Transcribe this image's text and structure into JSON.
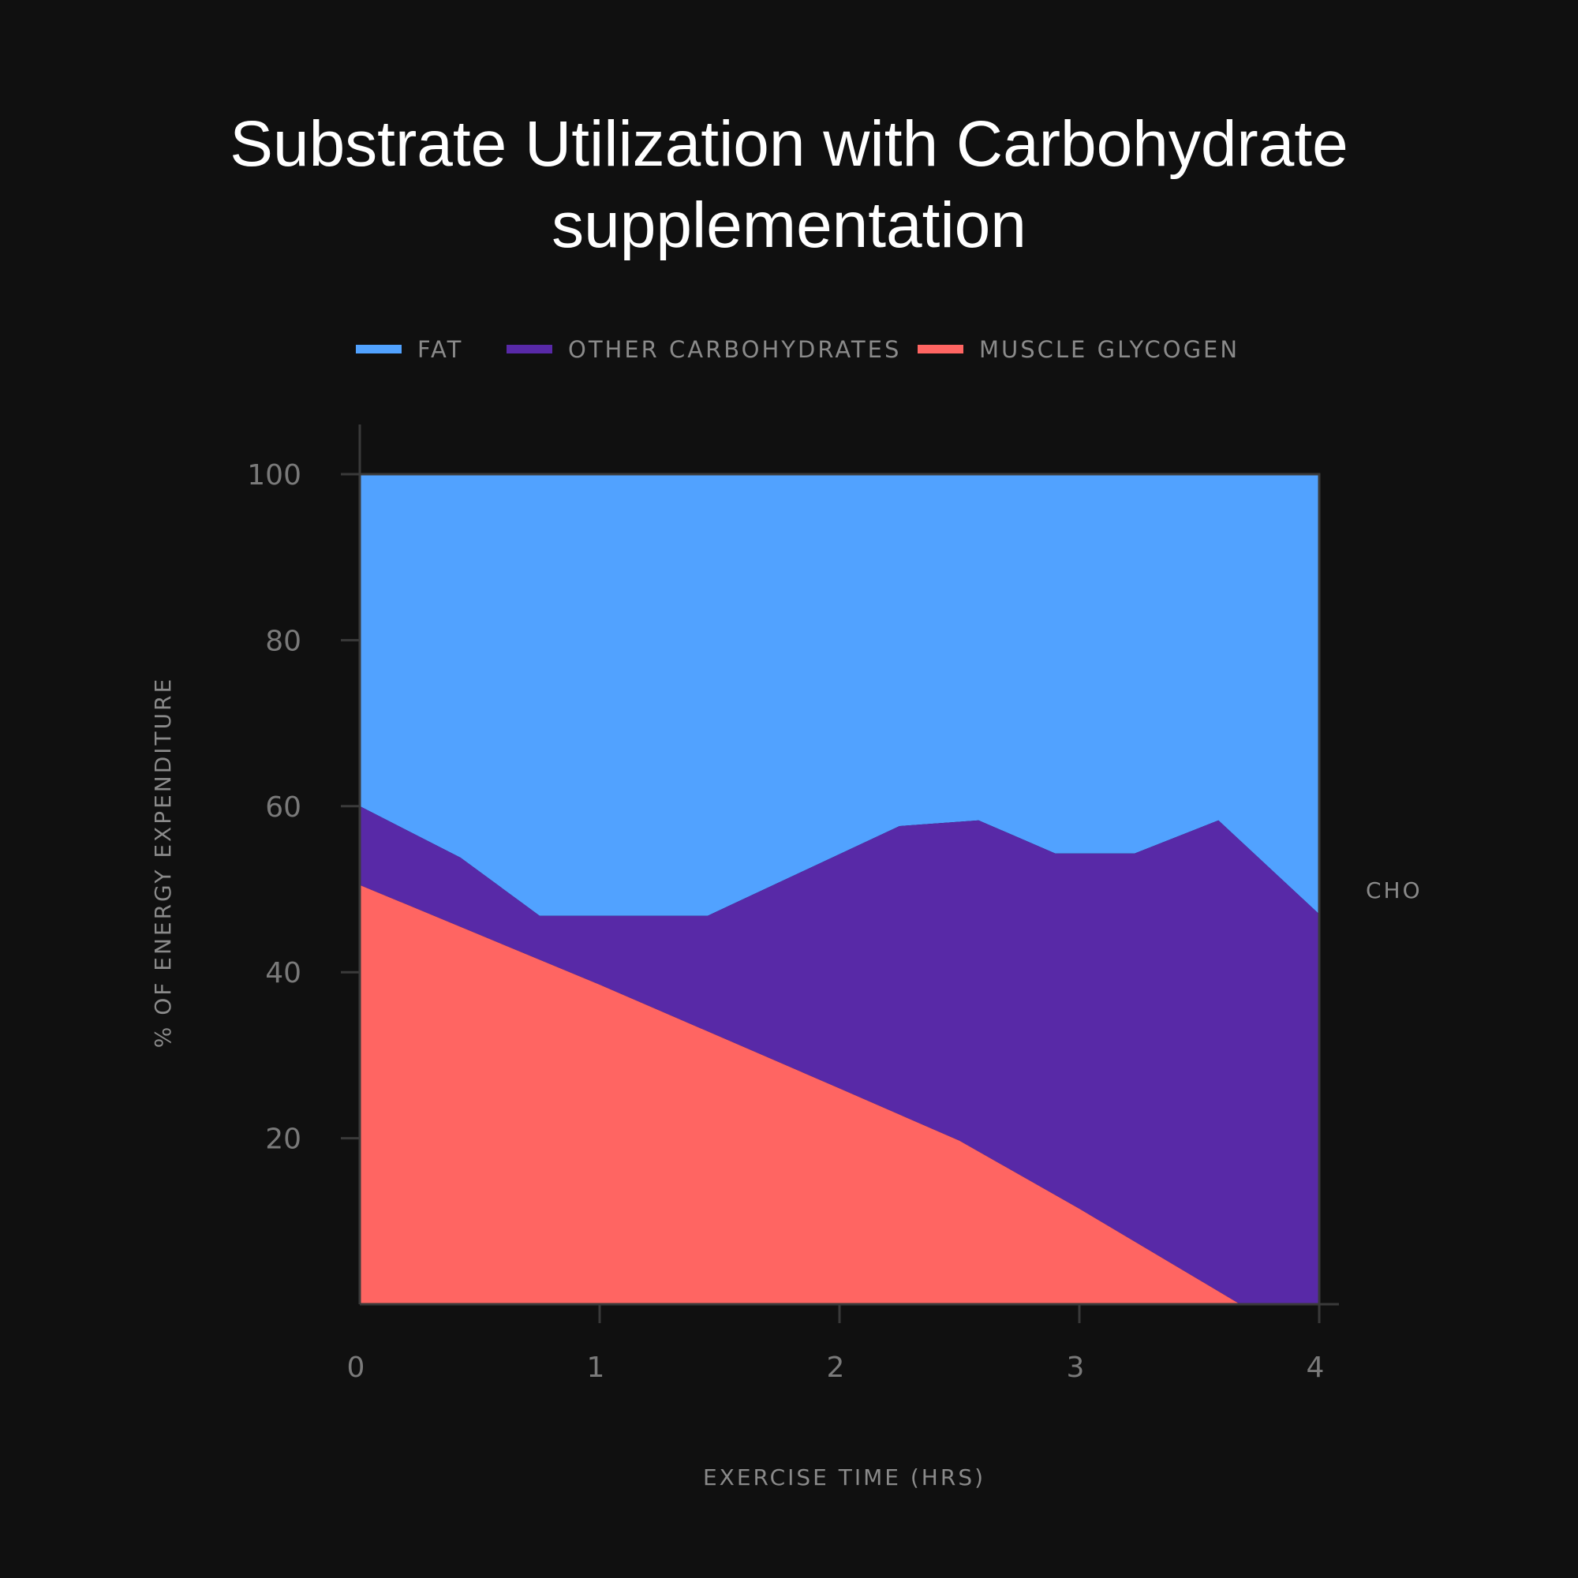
{
  "chart_data": {
    "type": "area",
    "title_lines": [
      "Substrate Utilization with Carbohydrate",
      "supplementation"
    ],
    "xlabel": "EXERCISE TIME (HRS)",
    "ylabel": "% OF ENERGY EXPENDITURE",
    "side_label": "CHO",
    "xlim": [
      0,
      4
    ],
    "ylim": [
      0,
      100
    ],
    "x_ticks": [
      0,
      1,
      2,
      3,
      4
    ],
    "y_ticks": [
      20,
      40,
      60,
      80,
      100
    ],
    "legend_position": "top",
    "legend": [
      {
        "name": "FAT",
        "color": "#51a2ff"
      },
      {
        "name": "OTHER CARBOHYDRATES",
        "color": "#5829a7"
      },
      {
        "name": "MUSCLE GLYCOGEN",
        "color": "#ff6562"
      }
    ],
    "series": [
      {
        "name": "MUSCLE GLYCOGEN",
        "color": "#ff6562",
        "points": [
          [
            0,
            50.5
          ],
          [
            1,
            38.5
          ],
          [
            2,
            26
          ],
          [
            2.5,
            19.7
          ],
          [
            3,
            11.5
          ],
          [
            3.67,
            0
          ],
          [
            4,
            0
          ]
        ]
      },
      {
        "name": "OTHER CARBOHYDRATES",
        "color": "#5829a7",
        "note_top_boundary_is_cumulative": true,
        "top_points": [
          [
            0,
            60
          ],
          [
            0.42,
            53.8
          ],
          [
            0.75,
            46.8
          ],
          [
            1.45,
            46.8
          ],
          [
            2.25,
            57.6
          ],
          [
            2.58,
            58.3
          ],
          [
            2.9,
            54.3
          ],
          [
            3.23,
            54.3
          ],
          [
            3.58,
            58.3
          ],
          [
            4,
            47
          ]
        ]
      },
      {
        "name": "FAT",
        "color": "#51a2ff",
        "top_points": [
          [
            0,
            100
          ],
          [
            4,
            100
          ]
        ]
      }
    ]
  }
}
